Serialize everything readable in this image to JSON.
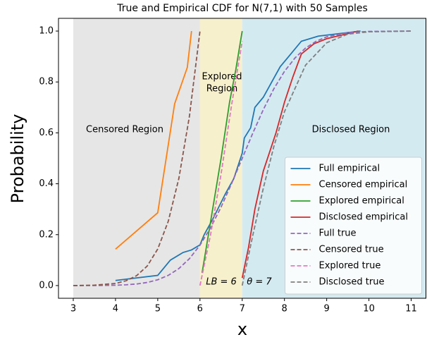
{
  "chart_data": {
    "type": "line",
    "title": "True and Empirical CDF for N(7,1) with 50 Samples",
    "x_label": "x",
    "y_label": "Probability",
    "xlim": [
      2.65,
      11.35
    ],
    "ylim": [
      -0.05,
      1.05
    ],
    "xticks": [
      3,
      4,
      5,
      6,
      7,
      8,
      9,
      10,
      11
    ],
    "yticks": [
      {
        "value": 0,
        "label": "0.0"
      },
      0.2,
      0.4,
      0.6,
      0.8,
      {
        "value": 1,
        "label": "1.0"
      }
    ],
    "grid": false,
    "legend": "lower right",
    "spans": [
      {
        "x0": 3,
        "x1": 6,
        "color": "#e6e6e6"
      },
      {
        "x0": 6,
        "x1": 7,
        "color": "#f7f0cc"
      },
      {
        "x0": 7,
        "x1": 11.35,
        "color": "#d4eaf1"
      }
    ],
    "annotations": [
      {
        "lines": [
          "Censored Region"
        ],
        "color": "#808080"
      },
      {
        "lines": [
          "Explored",
          "Region"
        ],
        "color": "#ffa500"
      },
      {
        "lines": [
          "Disclosed Region"
        ],
        "color": "#0000ff"
      },
      {
        "lines": [
          "LB = 6"
        ],
        "color": "#000000"
      },
      {
        "lines": [
          "θ = 7"
        ],
        "color": "#000000"
      }
    ],
    "series": [
      {
        "name": "Full empirical",
        "color": "#1f77b4",
        "dashed": false,
        "x": [
          4,
          4.5,
          5,
          5.3,
          5.6,
          5.8,
          6,
          6.1,
          6.3,
          6.6,
          6.8,
          7,
          7.05,
          7.2,
          7.3,
          7.5,
          7.7,
          7.9,
          8.1,
          8.4,
          8.8,
          9.3,
          9.8
        ],
        "values": [
          0.02,
          0.03,
          0.04,
          0.1,
          0.13,
          0.14,
          0.16,
          0.2,
          0.26,
          0.36,
          0.42,
          0.52,
          0.58,
          0.62,
          0.7,
          0.74,
          0.8,
          0.86,
          0.9,
          0.96,
          0.98,
          0.99,
          1.0
        ]
      },
      {
        "name": "Censored empirical",
        "color": "#ff7f0e",
        "dashed": false,
        "x": [
          4,
          5,
          5.4,
          5.7,
          5.8
        ],
        "values": [
          0.143,
          0.286,
          0.714,
          0.857,
          1.0
        ]
      },
      {
        "name": "Explored empirical",
        "color": "#2ca02c",
        "dashed": false,
        "x": [
          6.05,
          6.2,
          6.3,
          6.5,
          6.7,
          6.85,
          7
        ],
        "values": [
          0.05,
          0.2,
          0.3,
          0.5,
          0.72,
          0.85,
          1.0
        ]
      },
      {
        "name": "Disclosed empirical",
        "color": "#d62728",
        "dashed": false,
        "x": [
          7,
          7.15,
          7.3,
          7.5,
          7.8,
          8,
          8.2,
          8.4,
          8.7,
          9,
          9.5,
          9.75
        ],
        "values": [
          0.03,
          0.15,
          0.3,
          0.45,
          0.6,
          0.72,
          0.82,
          0.91,
          0.95,
          0.97,
          0.99,
          1.0
        ]
      },
      {
        "name": "Full true",
        "color": "#9467bd",
        "dashed": true,
        "x": [
          3,
          3.5,
          4,
          4.25,
          4.5,
          4.75,
          5,
          5.25,
          5.5,
          5.75,
          6,
          6.25,
          6.5,
          6.75,
          7,
          7.25,
          7.5,
          7.75,
          8,
          8.25,
          8.5,
          8.75,
          9,
          9.5,
          10,
          11
        ],
        "values": [
          3e-05,
          0.00023,
          0.00135,
          0.003,
          0.0062,
          0.0122,
          0.0228,
          0.0401,
          0.0668,
          0.1056,
          0.1587,
          0.2266,
          0.3085,
          0.4013,
          0.5,
          0.5987,
          0.6915,
          0.7734,
          0.8413,
          0.8944,
          0.9332,
          0.9599,
          0.9772,
          0.9938,
          0.99865,
          1.0
        ]
      },
      {
        "name": "Censored true",
        "color": "#8c564b",
        "dashed": true,
        "x": [
          3,
          3.5,
          4,
          4.25,
          4.5,
          4.75,
          5,
          5.25,
          5.5,
          5.75,
          6
        ],
        "values": [
          0,
          0.0014,
          0.0083,
          0.0187,
          0.039,
          0.0765,
          0.1435,
          0.253,
          0.421,
          0.665,
          1.0
        ]
      },
      {
        "name": "Explored true",
        "color": "#e377c2",
        "dashed": true,
        "x": [
          6,
          6.25,
          6.5,
          6.75,
          7
        ],
        "values": [
          0,
          0.199,
          0.439,
          0.711,
          0.96
        ]
      },
      {
        "name": "Disclosed true",
        "color": "#7f7f7f",
        "dashed": true,
        "x": [
          7,
          7.25,
          7.5,
          7.75,
          8,
          8.5,
          9,
          9.5,
          10,
          11
        ],
        "values": [
          0,
          0.197,
          0.383,
          0.547,
          0.683,
          0.866,
          0.954,
          0.988,
          0.997,
          1.0
        ]
      }
    ]
  }
}
